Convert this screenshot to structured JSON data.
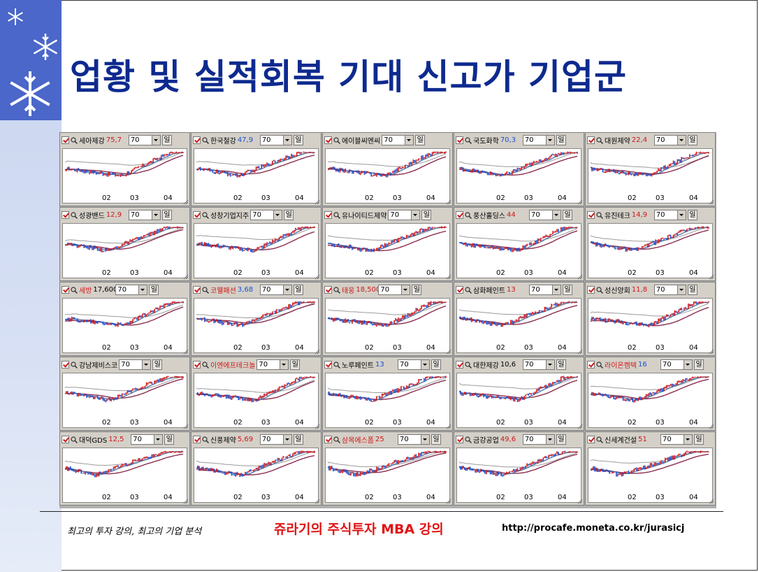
{
  "slide": {
    "title": "업황 및 실적회복 기대 신고가 기업군",
    "footer": {
      "text1": "최고의 투자 강의, 최고의 기업 분석",
      "text2": "쥬라기의 주식투자 MBA 강의",
      "url": "http://procafe.moneta.co.kr/jurasicj"
    }
  },
  "widget": {
    "period": "70",
    "unit": "일"
  },
  "tiles": [
    {
      "name": "세아제강",
      "price": "75,7",
      "color": "up",
      "x": [
        "02",
        "03",
        "04"
      ]
    },
    {
      "name": "한국철강",
      "price": "47,9",
      "color": "dn",
      "x": [
        "02",
        "03",
        "04"
      ]
    },
    {
      "name": "에이블씨엔씨",
      "price": "",
      "color": "nt",
      "x": [
        "02",
        "03",
        "04"
      ]
    },
    {
      "name": "국도화학",
      "price": "70,3",
      "color": "dn",
      "x": [
        "02",
        "03",
        "04"
      ]
    },
    {
      "name": "대원제약",
      "price": "22,4",
      "color": "up",
      "x": [
        "02",
        "03",
        "04"
      ]
    },
    {
      "name": "성광밴드",
      "price": "12,9",
      "color": "up",
      "x": [
        "02",
        "03",
        "04"
      ]
    },
    {
      "name": "성창기업지주",
      "price": "",
      "color": "nt",
      "x": [
        "02",
        "03",
        "04"
      ]
    },
    {
      "name": "유나이티드제약",
      "price": "",
      "color": "nt",
      "x": [
        "02",
        "03",
        "04"
      ]
    },
    {
      "name": "풍산홀딩스",
      "price": "44",
      "color": "up",
      "x": [
        "02",
        "03",
        "04"
      ]
    },
    {
      "name": "유진테크",
      "price": "14,9",
      "color": "up",
      "x": [
        "02",
        "03",
        "04"
      ]
    },
    {
      "name": "세방",
      "price": "17,600",
      "color": "nt",
      "x": [
        "02",
        "03",
        "04"
      ]
    },
    {
      "name": "코웰패션",
      "price": "3,68",
      "color": "dn",
      "x": [
        "02",
        "03",
        "04"
      ]
    },
    {
      "name": "태웅",
      "price": "18,500",
      "color": "up",
      "x": [
        "02",
        "03",
        "04"
      ]
    },
    {
      "name": "삼화페인트",
      "price": "13",
      "color": "up",
      "x": [
        "02",
        "03",
        "04"
      ]
    },
    {
      "name": "성신양회",
      "price": "11,8",
      "color": "up",
      "x": [
        "02",
        "03",
        "04"
      ]
    },
    {
      "name": "강남제비스코",
      "price": "",
      "color": "nt",
      "x": [
        "02",
        "03",
        "04"
      ]
    },
    {
      "name": "이엔에프테크놀",
      "price": "",
      "color": "up",
      "x": [
        "02",
        "03",
        "04"
      ]
    },
    {
      "name": "노루페인트",
      "price": "13",
      "color": "dn",
      "x": [
        "02",
        "03",
        "04"
      ]
    },
    {
      "name": "대한제강",
      "price": "10,6",
      "color": "nt",
      "x": [
        "02",
        "03",
        "04"
      ]
    },
    {
      "name": "라이온켐텍",
      "price": "16",
      "color": "dn",
      "x": [
        "02",
        "03",
        "04"
      ]
    },
    {
      "name": "대덕GDS",
      "price": "12,5",
      "color": "up",
      "x": [
        "02",
        "03",
        "04"
      ]
    },
    {
      "name": "신풍제약",
      "price": "5,69",
      "color": "up",
      "x": [
        "02",
        "03",
        "04"
      ]
    },
    {
      "name": "삼목에스폼",
      "price": "25",
      "color": "up",
      "x": [
        "02",
        "03",
        "04"
      ]
    },
    {
      "name": "금강공업",
      "price": "49,6",
      "color": "up",
      "x": [
        "02",
        "03",
        "04"
      ]
    },
    {
      "name": "신세계건설",
      "price": "51",
      "color": "up",
      "x": [
        "02",
        "03",
        "04"
      ]
    }
  ],
  "colors": {
    "up": "#d01818",
    "down": "#1a4fd0",
    "ma_short": "#5577aa",
    "ma_mid": "#8b2c50",
    "ma_long": "#9a9a9a"
  }
}
